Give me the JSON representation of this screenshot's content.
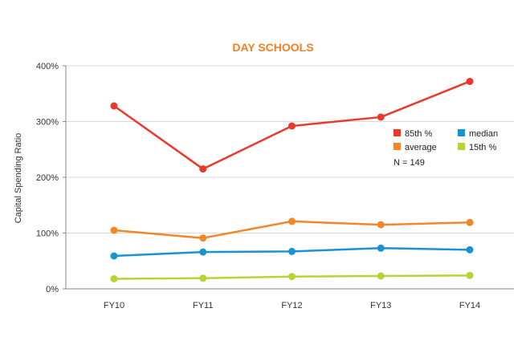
{
  "chart_data": {
    "type": "line",
    "title": "DAY SCHOOLS",
    "title_color": "#f47f20",
    "xlabel": "",
    "ylabel": "Capital Spending Ratio",
    "categories": [
      "FY10",
      "FY11",
      "FY12",
      "FY13",
      "FY14"
    ],
    "ylim": [
      0,
      400
    ],
    "yticks": [
      0,
      100,
      200,
      300,
      400
    ],
    "ytick_labels": [
      "0%",
      "100%",
      "200%",
      "300%",
      "400%"
    ],
    "grid": true,
    "legend_position": "right",
    "series": [
      {
        "name": "85th %",
        "color": "#e8392b",
        "values": [
          328,
          215,
          292,
          308,
          372
        ]
      },
      {
        "name": "median",
        "color": "#1a93d2",
        "values": [
          59,
          66,
          67,
          73,
          70
        ]
      },
      {
        "name": "average",
        "color": "#f4862a",
        "values": [
          105,
          91,
          121,
          115,
          119
        ]
      },
      {
        "name": "15th %",
        "color": "#b6d433",
        "values": [
          18,
          19,
          22,
          23,
          24
        ]
      }
    ],
    "annotation": "N = 149"
  }
}
